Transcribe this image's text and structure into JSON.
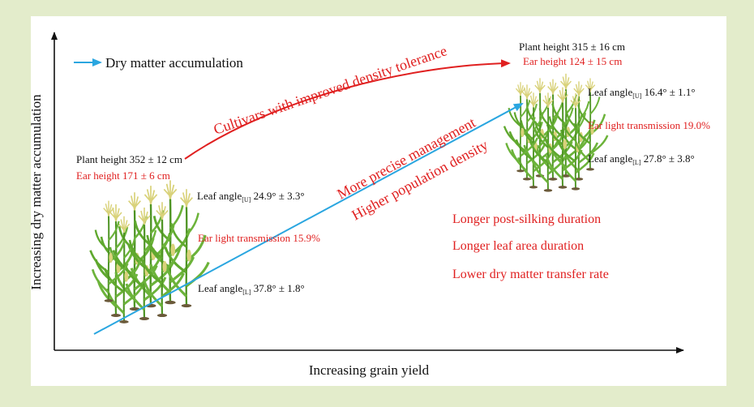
{
  "axes": {
    "y_label": "Increasing dry matter accumulation",
    "x_label": "Increasing grain yield"
  },
  "legend": {
    "label": "Dry matter accumulation",
    "color": "#2aa6e0"
  },
  "colors": {
    "red_text": "#e02020",
    "black_text": "#111111",
    "plant_green": "#5fa82e",
    "tassel": "#d9d27a"
  },
  "arrows": {
    "curved_label": "Cultivars with improved density tolerance",
    "straight_label_1": "More precise management",
    "straight_label_2": "Higher population density"
  },
  "left_group": {
    "plant_height": "Plant height 352 ± 12 cm",
    "ear_height": "Ear height 171 ± 6 cm",
    "leaf_angle_upper_prefix": "Leaf angle",
    "leaf_angle_upper_sub": "[U]",
    "leaf_angle_upper_value": " 24.9° ± 3.3°",
    "ear_light": "Ear light transmission 15.9%",
    "leaf_angle_lower_prefix": "Leaf angle",
    "leaf_angle_lower_sub": "[L]",
    "leaf_angle_lower_value": " 37.8° ± 1.8°"
  },
  "right_group": {
    "plant_height": "Plant height 315 ± 16 cm",
    "ear_height": "Ear height 124 ± 15 cm",
    "leaf_angle_upper_prefix": "Leaf angle",
    "leaf_angle_upper_sub": "[U]",
    "leaf_angle_upper_value": " 16.4° ± 1.1°",
    "ear_light": "Ear light transmission 19.0%",
    "leaf_angle_lower_prefix": "Leaf angle",
    "leaf_angle_lower_sub": "[L]",
    "leaf_angle_lower_value": " 27.8° ± 3.8°"
  },
  "outcomes": [
    "Longer post-silking duration",
    "Longer leaf area duration",
    "Lower dry matter transfer rate"
  ]
}
